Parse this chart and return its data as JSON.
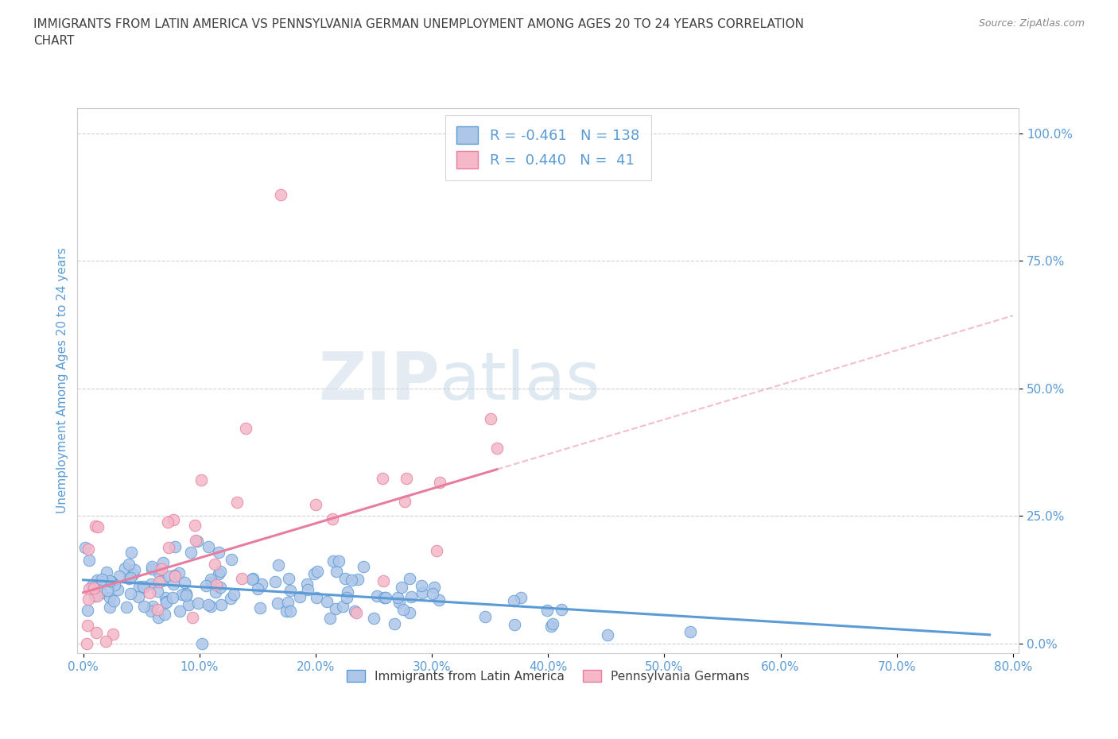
{
  "title": "IMMIGRANTS FROM LATIN AMERICA VS PENNSYLVANIA GERMAN UNEMPLOYMENT AMONG AGES 20 TO 24 YEARS CORRELATION\nCHART",
  "source_text": "Source: ZipAtlas.com",
  "xlabel": "",
  "ylabel": "Unemployment Among Ages 20 to 24 years",
  "xlim": [
    -0.005,
    0.805
  ],
  "ylim": [
    -0.02,
    1.05
  ],
  "xticks": [
    0.0,
    0.1,
    0.2,
    0.3,
    0.4,
    0.5,
    0.6,
    0.7,
    0.8
  ],
  "xticklabels": [
    "0.0%",
    "10.0%",
    "20.0%",
    "30.0%",
    "40.0%",
    "50.0%",
    "60.0%",
    "70.0%",
    "80.0%"
  ],
  "yticks": [
    0.0,
    0.25,
    0.5,
    0.75,
    1.0
  ],
  "yticklabels": [
    "0.0%",
    "25.0%",
    "50.0%",
    "75.0%",
    "100.0%"
  ],
  "blue_color": "#aec6e8",
  "blue_edge_color": "#5b9bd5",
  "pink_color": "#f4b8c8",
  "pink_edge_color": "#e87da0",
  "trend_blue_color": "#5b9bd5",
  "trend_pink_color": "#e87da0",
  "R_blue": -0.461,
  "N_blue": 138,
  "R_pink": 0.44,
  "N_pink": 41,
  "watermark_ZIP": "ZIP",
  "watermark_atlas": "atlas",
  "background_color": "#ffffff",
  "grid_color": "#cccccc",
  "title_color": "#404040",
  "axis_label_color": "#5b9bd5",
  "legend_text_color": "#5b9bd5"
}
